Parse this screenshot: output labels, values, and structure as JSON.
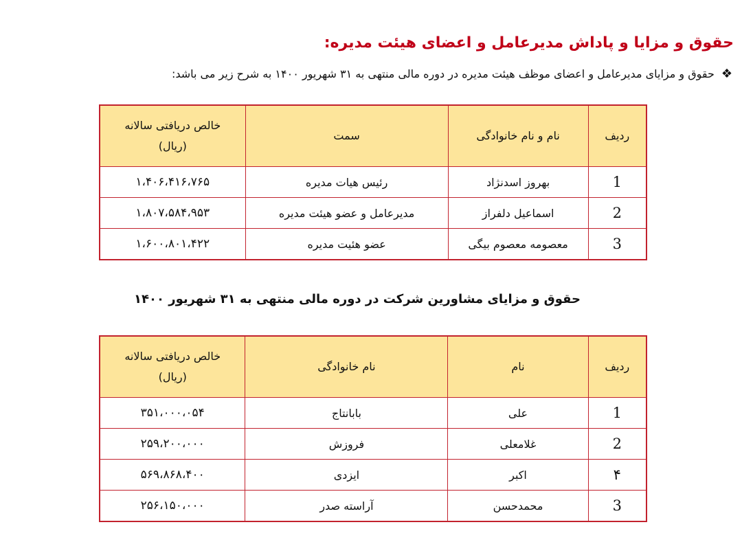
{
  "title": "حقوق و مزایا و پاداش مدیرعامل و اعضای هیئت مدیره:",
  "bullet": {
    "icon": "diamond-bullet-icon",
    "glyph": "❖",
    "text": "حقوق و مزایای مدیرعامل و اعضای موظف هیئت مدیره در دوره مالی منتهی به ۳۱ شهریور ۱۴۰۰ به شرح زیر می باشد:"
  },
  "colors": {
    "border": "#c2212d",
    "header_bg": "#fde59b",
    "title": "#c00018"
  },
  "table1": {
    "headers": [
      "ردیف",
      "نام و نام خانوادگی",
      "سمت",
      "خالص دریافتی سالانه",
      "(ریال)"
    ],
    "rows": [
      [
        "1",
        "بهروز اسدنژاد",
        "رئیس هیات مدیره",
        "۱،۴۰۶،۴۱۶،۷۶۵"
      ],
      [
        "2",
        "اسماعیل دلفراز",
        "مدیرعامل و عضو هیئت مدیره",
        "۱،۸۰۷،۵۸۴،۹۵۳"
      ],
      [
        "3",
        "معصومه معصوم بیگی",
        "عضو هئیت مدیره",
        "۱،۶۰۰،۸۰۱،۴۲۲"
      ]
    ]
  },
  "subtitle": "حقوق و مزایای مشاورین شرکت در دوره مالی منتهی به ۳۱ شهریور ۱۴۰۰",
  "table2": {
    "headers": [
      "ردیف",
      "نام",
      "نام خانوادگی",
      "خالص دریافتی سالانه",
      "(ریال)"
    ],
    "rows": [
      [
        "1",
        "علی",
        "بابانتاج",
        "۳۵۱،۰۰۰،۰۵۴"
      ],
      [
        "2",
        "غلامعلی",
        "فروزش",
        "۲۵۹،۲۰۰،۰۰۰"
      ],
      [
        "۴",
        "اکبر",
        "ایزدی",
        "۵۶۹،۸۶۸،۴۰۰"
      ],
      [
        "3",
        "محمدحسن",
        "آراسته صدر",
        "۲۵۶،۱۵۰،۰۰۰"
      ]
    ]
  }
}
